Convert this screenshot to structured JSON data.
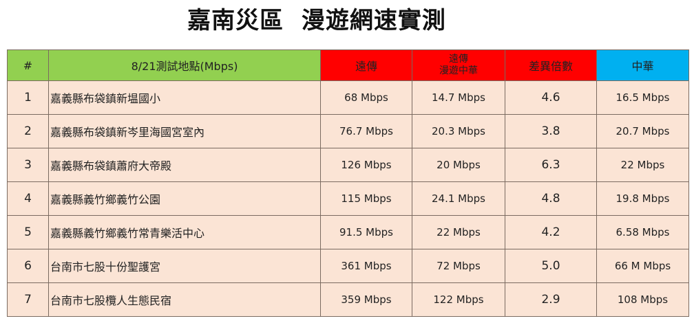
{
  "title": "嘉南災區  漫遊網速實測",
  "headers": [
    "#",
    "8/21測試地點(Mbps)",
    "遠傳",
    "遠傳\n漫遊中華",
    "差異倍數",
    "中華"
  ],
  "header_lines": {
    "roam1": "遠傳",
    "roam2": "漫遊中華"
  },
  "colors": {
    "green": "#92d050",
    "red": "#ff0000",
    "blue": "#00b0f0",
    "row": "#fbe4d5"
  },
  "rows": [
    {
      "n": "1",
      "loc": "嘉義縣布袋鎮新塭國小",
      "fet": "68 Mbps",
      "roam": "14.7 Mbps",
      "ratio": "4.6",
      "cht": "16.5 Mbps"
    },
    {
      "n": "2",
      "loc": "嘉義縣布袋鎮新岑里海國宮室內",
      "fet": "76.7 Mbps",
      "roam": "20.3 Mbps",
      "ratio": "3.8",
      "cht": "20.7 Mbps"
    },
    {
      "n": "3",
      "loc": "嘉義縣布袋鎮蕭府大帝殿",
      "fet": "126 Mbps",
      "roam": "20 Mbps",
      "ratio": "6.3",
      "cht": "22 Mbps"
    },
    {
      "n": "4",
      "loc": "嘉義縣義竹鄉義竹公園",
      "fet": "115 Mbps",
      "roam": "24.1 Mbps",
      "ratio": "4.8",
      "cht": "19.8 Mbps"
    },
    {
      "n": "5",
      "loc": "嘉義縣義竹鄉義竹常青樂活中心",
      "fet": "91.5 Mbps",
      "roam": "22 Mbps",
      "ratio": "4.2",
      "cht": "6.58 Mbps"
    },
    {
      "n": "6",
      "loc": "台南市七股十份聖護宮",
      "fet": "361 Mbps",
      "roam": "72 Mbps",
      "ratio": "5.0",
      "cht": "66 M Mbps"
    },
    {
      "n": "7",
      "loc": "台南市七股欖人生態民宿",
      "fet": "359 Mbps",
      "roam": "122 Mbps",
      "ratio": "2.9",
      "cht": "108 Mbps"
    }
  ]
}
